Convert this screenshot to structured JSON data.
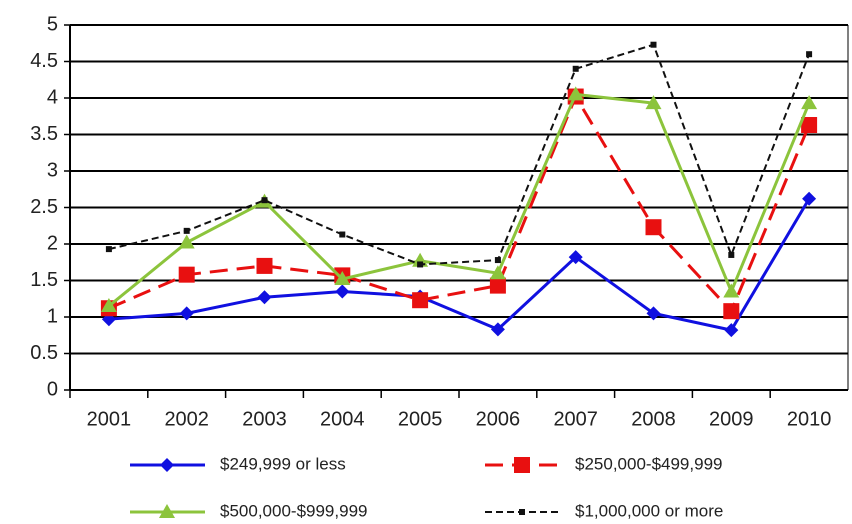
{
  "chart_data": {
    "type": "line",
    "categories": [
      "2001",
      "2002",
      "2003",
      "2004",
      "2005",
      "2006",
      "2007",
      "2008",
      "2009",
      "2010"
    ],
    "ylim": [
      0,
      5
    ],
    "yticks": [
      0,
      0.5,
      1,
      1.5,
      2,
      2.5,
      3,
      3.5,
      4,
      4.5,
      5
    ],
    "grid": true,
    "legend": "bottom",
    "series": [
      {
        "name": "$249,999 or less",
        "color": "#1010e0",
        "marker": "diamond",
        "dash": false,
        "values": [
          0.97,
          1.05,
          1.27,
          1.35,
          1.28,
          0.83,
          1.82,
          1.05,
          0.82,
          2.62
        ]
      },
      {
        "name": "$250,000-$499,999",
        "color": "#e81010",
        "marker": "square",
        "dash": true,
        "values": [
          1.12,
          1.58,
          1.7,
          1.57,
          1.23,
          1.43,
          4.02,
          2.23,
          1.08,
          3.63
        ]
      },
      {
        "name": "$500,000-$999,999",
        "color": "#8cc43c",
        "marker": "triangle",
        "dash": false,
        "values": [
          1.15,
          2.02,
          2.58,
          1.52,
          1.77,
          1.6,
          4.05,
          3.93,
          1.35,
          3.93
        ]
      },
      {
        "name": "$1,000,000 or more",
        "color": "#111111",
        "marker": "small-square",
        "dash": true,
        "values": [
          1.93,
          2.18,
          2.6,
          2.13,
          1.72,
          1.78,
          4.4,
          4.73,
          1.85,
          4.6
        ]
      }
    ]
  }
}
